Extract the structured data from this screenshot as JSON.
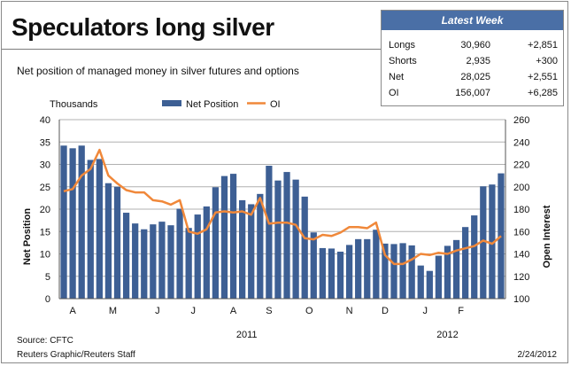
{
  "title": "Speculators long silver",
  "subtitle": "Net position of managed money in silver futures and options",
  "latest_week": {
    "header": "Latest Week",
    "rows": [
      {
        "label": "Longs",
        "value": "30,960",
        "change": "+2,851"
      },
      {
        "label": "Shorts",
        "value": "2,935",
        "change": "+300"
      },
      {
        "label": "Net",
        "value": "28,025",
        "change": "+2,551"
      },
      {
        "label": "OI",
        "value": "156,007",
        "change": "+6,285"
      }
    ]
  },
  "colors": {
    "bar": "#3d5f94",
    "line": "#f0883a",
    "grid": "#b0b0b0",
    "header": "#4a6fa6"
  },
  "footer": {
    "source": "Source: CFTC",
    "credit": "Reuters Graphic/Reuters Staff",
    "date": "2/24/2012"
  },
  "chart_data": {
    "type": "bar",
    "units_label": "Thousands",
    "ylabel_left": "Net Position",
    "ylabel_right": "Open Interest",
    "ylim_left": [
      0,
      40
    ],
    "ylim_right": [
      100,
      260
    ],
    "yticks_left": [
      0,
      5,
      10,
      15,
      20,
      25,
      30,
      35,
      40
    ],
    "yticks_right": [
      100,
      120,
      140,
      160,
      180,
      200,
      220,
      240,
      260
    ],
    "month_labels": [
      "A",
      "M",
      "J",
      "J",
      "A",
      "S",
      "O",
      "N",
      "D",
      "J",
      "F"
    ],
    "month_week_index": [
      1.0,
      5.5,
      10.5,
      14.5,
      19.0,
      23.0,
      27.5,
      32.0,
      36.0,
      40.5,
      44.5
    ],
    "year_labels": [
      "2011",
      "2012"
    ],
    "year_week_index": [
      20.5,
      43.0
    ],
    "grid": true,
    "series": [
      {
        "name": "Net Position",
        "type": "bar",
        "axis": "left",
        "values": [
          34.2,
          33.6,
          34.2,
          31.0,
          31.2,
          25.8,
          25.0,
          19.2,
          16.8,
          15.5,
          16.6,
          17.2,
          16.4,
          20.1,
          15.8,
          18.8,
          20.6,
          24.9,
          27.4,
          27.9,
          22.0,
          21.1,
          23.4,
          29.7,
          26.4,
          28.3,
          26.6,
          22.8,
          14.8,
          11.3,
          11.2,
          10.5,
          12.0,
          13.3,
          13.3,
          15.4,
          12.3,
          12.2,
          12.4,
          11.9,
          7.4,
          6.2,
          9.6,
          11.8,
          13.1,
          16.0,
          18.6,
          25.1,
          25.5,
          28.0
        ]
      },
      {
        "name": "OI",
        "type": "line",
        "axis": "right",
        "values": [
          196,
          198,
          210,
          216,
          233,
          210,
          203,
          197,
          195,
          195,
          188,
          187,
          184,
          188,
          160,
          158,
          162,
          177,
          178,
          177,
          178,
          175,
          190,
          167,
          168,
          168,
          166,
          154,
          153,
          157,
          156,
          159,
          164,
          164,
          163,
          168,
          139,
          131,
          131,
          135,
          140,
          139,
          141,
          140,
          143,
          145,
          147,
          152,
          149,
          156
        ]
      }
    ]
  }
}
